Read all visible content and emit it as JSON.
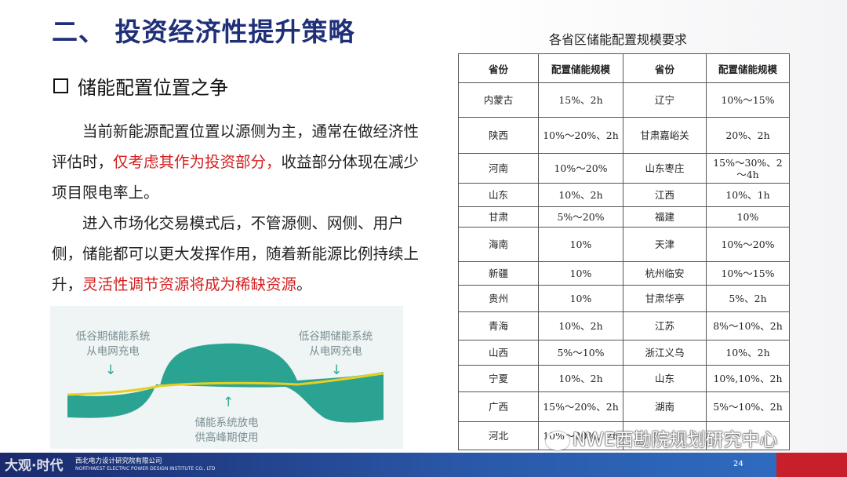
{
  "title": "二、 投资经济性提升策略",
  "section_heading": "储能配置位置之争",
  "paragraph1": {
    "before": "当前新能源配置位置以源侧为主，通常在做经济性评估时，",
    "highlight": "仅考虑其作为投资部分，",
    "after": "收益部分体现在减少项目限电率上。"
  },
  "paragraph2": {
    "before": "进入市场化交易模式后，不管源侧、网侧、用户侧，储能都可以更大发挥作用，随着新能源比例持续上升，",
    "highlight": "灵活性调节资源将成为稀缺资源",
    "after": "。"
  },
  "figure": {
    "left_label_1": "低谷期储能系统",
    "left_label_2": "从电网充电",
    "right_label_1": "低谷期储能系统",
    "right_label_2": "从电网充电",
    "bottom_label_1": "储能系统放电",
    "bottom_label_2": "供高峰期使用",
    "fill_color": "#2ba393",
    "curve_color": "#e8cf1f"
  },
  "table": {
    "title": "各省区储能配置规模要求",
    "headers": [
      "省份",
      "配置储能规模",
      "省份",
      "配置储能规模"
    ],
    "rows": [
      [
        "内蒙古",
        "15%、2h",
        "辽宁",
        "10%～15%"
      ],
      [
        "陕西",
        "10%～20%、2h",
        "甘肃嘉峪关",
        "20%、2h"
      ],
      [
        "河南",
        "10%～20%",
        "山东枣庄",
        "15%～30%、2～4h"
      ],
      [
        "山东",
        "10%、2h",
        "江西",
        "10%、1h"
      ],
      [
        "甘肃",
        "5%～20%",
        "福建",
        "10%"
      ],
      [
        "海南",
        "10%",
        "天津",
        "10%～20%"
      ],
      [
        "新疆",
        "10%",
        "杭州临安",
        "10%～15%"
      ],
      [
        "贵州",
        "10%",
        "甘肃华亭",
        "5%、2h"
      ],
      [
        "青海",
        "10%、2h",
        "江苏",
        "8%～10%、2h"
      ],
      [
        "山西",
        "5%～10%",
        "浙江义乌",
        "10%、2h"
      ],
      [
        "宁夏",
        "10%、2h",
        "山东",
        "10%,10%、2h"
      ],
      [
        "广西",
        "15%～20%、2h",
        "湖南",
        "5%～10%、2h"
      ],
      [
        "河北",
        "10%～20%、2h",
        "",
        ""
      ]
    ]
  },
  "footer": {
    "logo": "大观·时代",
    "company_cn": "西北电力设计研究院有限公司",
    "company_en": "NORTHWEST ELECTRIC POWER DESIGN INSTITUTE CO., LTD",
    "page_number": "24",
    "watermark": "NWE西勘院规划研究中心"
  },
  "colors": {
    "title": "#1f2f78",
    "highlight": "#d42020",
    "footer": "#2a58a8",
    "footer_accent": "#c8202a"
  }
}
